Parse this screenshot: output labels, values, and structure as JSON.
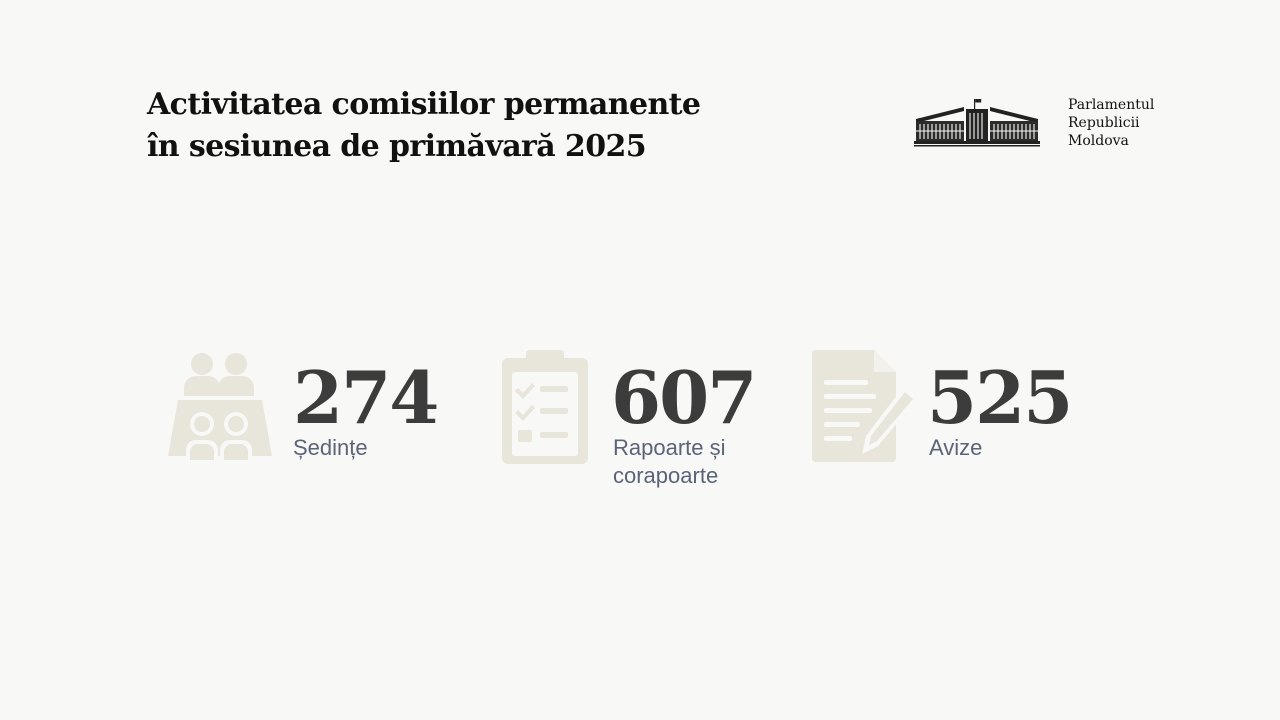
{
  "header": {
    "title_line1": "Activitatea comisiilor permanente",
    "title_line2": "în sesiunea de primăvară 2025"
  },
  "brand": {
    "icon": "parliament-building-icon",
    "line1": "Parlamentul",
    "line2": "Republicii",
    "line3": "Moldova"
  },
  "stats": [
    {
      "icon": "meeting-people-icon",
      "value": "274",
      "label_line1": "Ședințe",
      "label_line2": ""
    },
    {
      "icon": "clipboard-checklist-icon",
      "value": "607",
      "label_line1": "Rapoarte și",
      "label_line2": "corapoarte"
    },
    {
      "icon": "document-pen-icon",
      "value": "525",
      "label_line1": "Avize",
      "label_line2": ""
    }
  ],
  "colors": {
    "background": "#f8f8f6",
    "title": "#111111",
    "value": "#3c3c3c",
    "label": "#5b6478",
    "icon": "#e8e5da"
  }
}
